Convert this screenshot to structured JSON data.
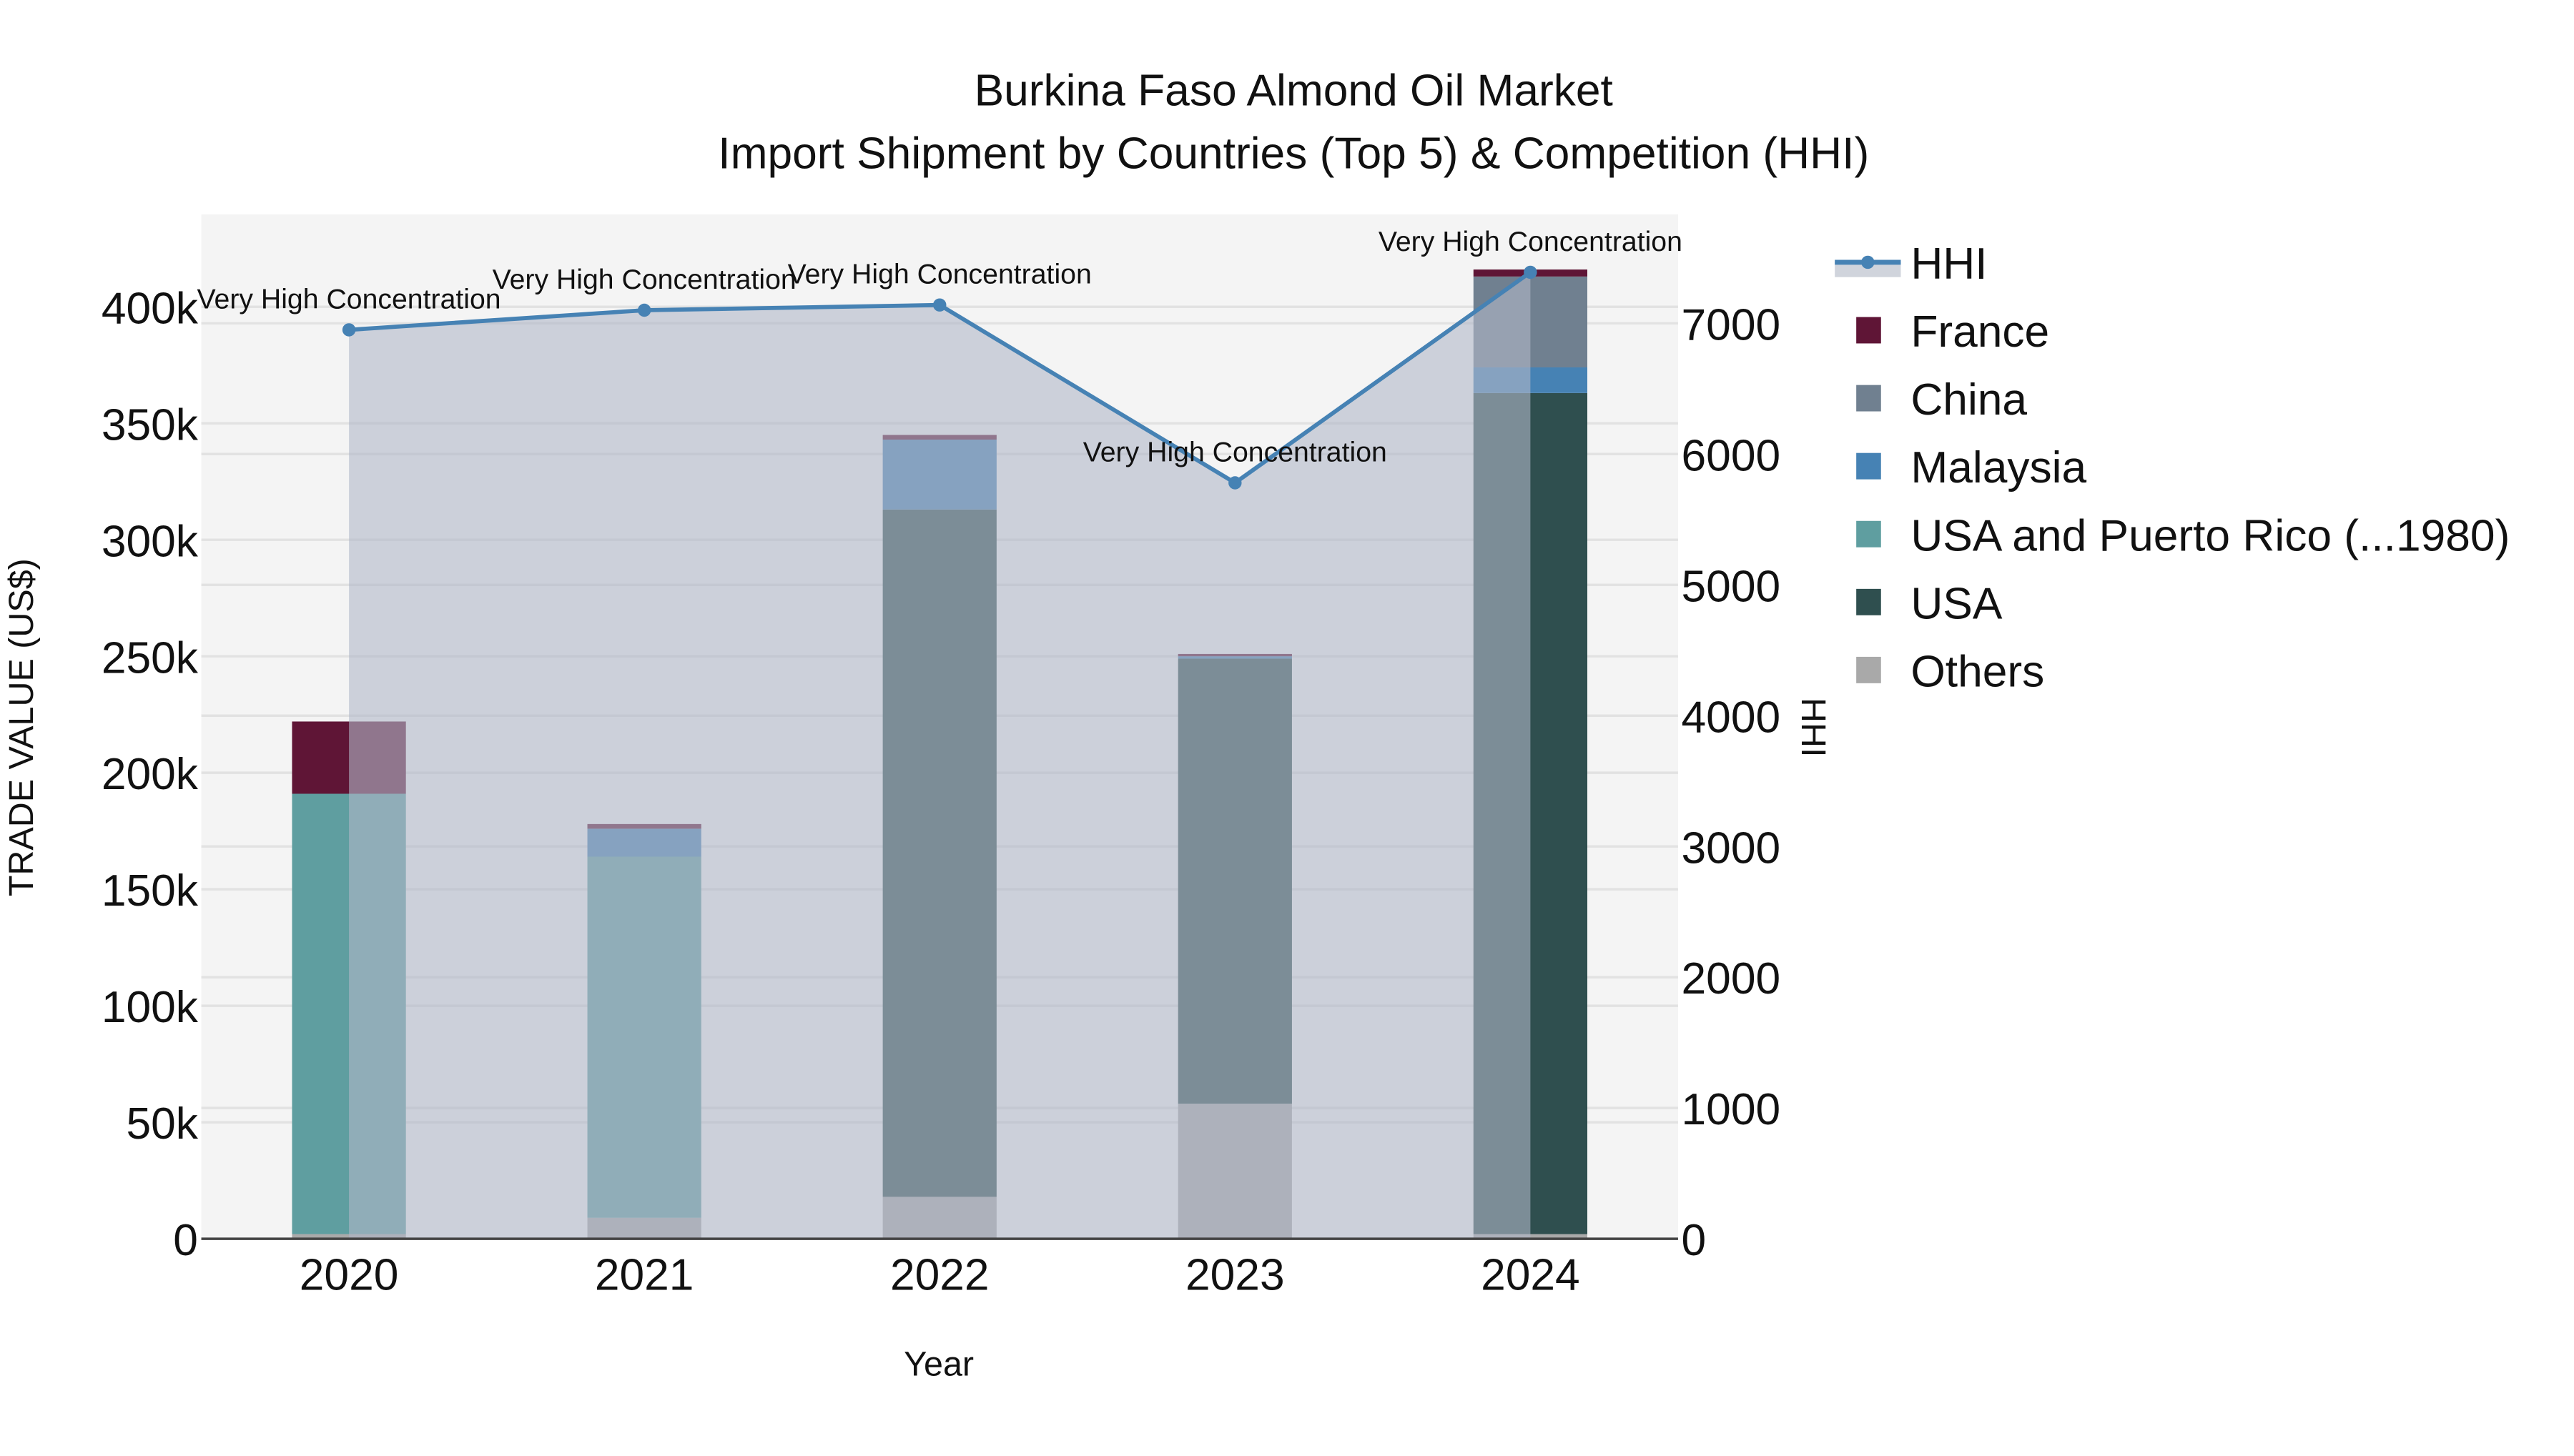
{
  "title_line1": "Burkina Faso Almond Oil Market",
  "title_line2": "Import Shipment by Countries (Top 5) & Competition (HHI)",
  "colors": {
    "plot_bg": "#f4f4f4",
    "hhi_line": "#4682b4",
    "hhi_fill": "#c8ccd4",
    "France": "#5f1536",
    "China": "#708090",
    "Malaysia": "#4682b4",
    "USA and Puerto Rico (...1980)": "#5f9ea0",
    "USA": "#2f4f4f",
    "Others": "#a9a9a9"
  },
  "chart_data": {
    "type": "bar",
    "title": "Burkina Faso Almond Oil Market — Import Shipment by Countries (Top 5) & Competition (HHI)",
    "xlabel": "Year",
    "ylabel": "TRADE VALUE (US$)",
    "y2label": "HHI",
    "categories": [
      "2020",
      "2021",
      "2022",
      "2023",
      "2024"
    ],
    "ylim": [
      0,
      440000
    ],
    "y2lim": [
      0,
      7700
    ],
    "yticks": [
      "0",
      "50k",
      "100k",
      "150k",
      "200k",
      "250k",
      "300k",
      "350k",
      "400k"
    ],
    "y2ticks": [
      "0",
      "1000",
      "2000",
      "3000",
      "4000",
      "5000",
      "6000",
      "7000"
    ],
    "stacked": true,
    "grid": true,
    "legend_position": "right",
    "series": [
      {
        "name": "Others",
        "values": [
          2000,
          9000,
          18000,
          58000,
          2000
        ]
      },
      {
        "name": "USA",
        "values": [
          0,
          0,
          295000,
          191000,
          361000
        ]
      },
      {
        "name": "USA and Puerto Rico (...1980)",
        "values": [
          189000,
          155000,
          0,
          0,
          0
        ]
      },
      {
        "name": "Malaysia",
        "values": [
          0,
          12000,
          30000,
          1000,
          11000
        ]
      },
      {
        "name": "China",
        "values": [
          0,
          0,
          0,
          0,
          39000
        ]
      },
      {
        "name": "France",
        "values": [
          31000,
          2000,
          2000,
          1000,
          3000
        ]
      }
    ],
    "line_series": {
      "name": "HHI",
      "axis": "y2",
      "values": [
        6950,
        7100,
        7140,
        5780,
        7390
      ],
      "annotations": [
        "Very High Concentration",
        "Very High Concentration",
        "Very High Concentration",
        "Very High Concentration",
        "Very High Concentration"
      ]
    }
  },
  "legend": [
    {
      "label": "HHI",
      "type": "line"
    },
    {
      "label": "France",
      "type": "box"
    },
    {
      "label": "China",
      "type": "box"
    },
    {
      "label": "Malaysia",
      "type": "box"
    },
    {
      "label": "USA and Puerto Rico (...1980)",
      "type": "box"
    },
    {
      "label": "USA",
      "type": "box"
    },
    {
      "label": "Others",
      "type": "box"
    }
  ]
}
